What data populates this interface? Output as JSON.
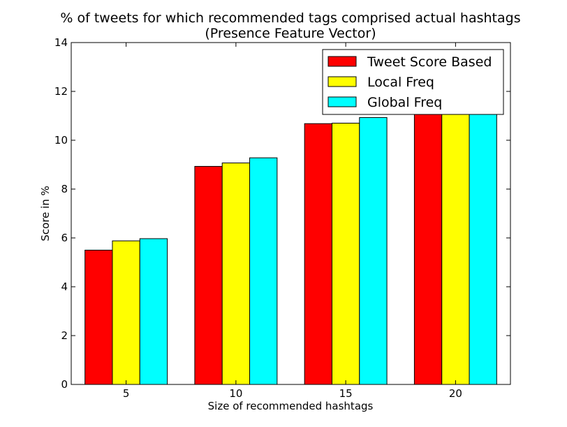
{
  "chart_data": {
    "type": "bar",
    "title": "% of tweets for which recommended tags comprised actual hashtags",
    "subtitle": "(Presence Feature Vector)",
    "xlabel": "Size of recommended hashtags",
    "ylabel": "Score in %",
    "categories": [
      "5",
      "10",
      "15",
      "20"
    ],
    "ylim": [
      0,
      14
    ],
    "yticks": [
      0,
      2,
      4,
      6,
      8,
      10,
      12,
      14
    ],
    "grid": false,
    "legend_position": "top-right",
    "series": [
      {
        "name": "Tweet Score Based",
        "color": "#ff0000",
        "values": [
          5.5,
          8.93,
          10.68,
          11.1
        ]
      },
      {
        "name": "Local Freq",
        "color": "#ffff00",
        "values": [
          5.88,
          9.07,
          10.7,
          11.1
        ]
      },
      {
        "name": "Global Freq",
        "color": "#00ffff",
        "values": [
          5.97,
          9.28,
          10.93,
          11.1
        ]
      }
    ]
  }
}
